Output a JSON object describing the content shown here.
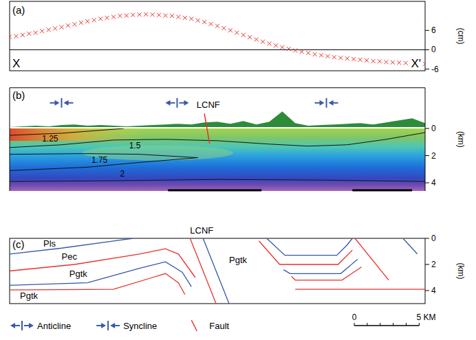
{
  "chart_data": {
    "type": "scatter",
    "panel_label": "(a)",
    "start_label": "X",
    "end_label": "X'",
    "y_label": "(cm)",
    "x": [
      0,
      0.5,
      1,
      1.5,
      2,
      2.5,
      3,
      3.5,
      4,
      4.5,
      5,
      5.5,
      6,
      6.5,
      7,
      7.5,
      8,
      8.5,
      9,
      9.5,
      10,
      10.5,
      11,
      11.5,
      12,
      12.5,
      13,
      13.5,
      14,
      14.5,
      15,
      15.5,
      16,
      16.5,
      17,
      17.5,
      18,
      18.5,
      19,
      19.5,
      20,
      20.5,
      21,
      21.5,
      22,
      22.5,
      23,
      23.5,
      24,
      24.5,
      25,
      25.5,
      26,
      26.5,
      27,
      27.5,
      28,
      28.5,
      29,
      29.5,
      30,
      30.5,
      31,
      31.5,
      32
    ],
    "values": [
      4.0,
      4.2,
      4.6,
      5.0,
      5.3,
      5.8,
      6.2,
      6.6,
      7.0,
      7.5,
      7.9,
      8.4,
      8.8,
      9.2,
      9.6,
      9.9,
      10.2,
      10.5,
      10.6,
      10.8,
      10.9,
      11.0,
      10.9,
      10.8,
      10.6,
      10.5,
      10.2,
      9.9,
      9.6,
      9.1,
      8.6,
      8.0,
      7.4,
      6.7,
      6.0,
      5.3,
      4.6,
      3.9,
      3.2,
      2.5,
      1.9,
      1.3,
      0.8,
      0.3,
      -0.2,
      -0.6,
      -1.0,
      -1.4,
      -1.7,
      -2.0,
      -2.3,
      -2.5,
      -2.7,
      -2.9,
      -3.1,
      -3.3,
      -3.5,
      -3.6,
      -3.8,
      -3.9,
      -4.0,
      -4.1,
      -4.2,
      -4.3,
      -4.4
    ],
    "color": "#e8302a",
    "marker": "x",
    "xlim": [
      0,
      32
    ],
    "ylim": [
      -6.5,
      15
    ],
    "yticks": [
      -6,
      0,
      6
    ],
    "reference_line": 0,
    "tick_labels": "y"
  },
  "section": {
    "panel_label": "(b)",
    "depth_label": "(km)",
    "depth_lim": [
      -3,
      4.6
    ],
    "depth_ticks": [
      0,
      2,
      4
    ],
    "contours": [
      {
        "level": 1.25,
        "x": [
          0,
          4,
          8.8
        ],
        "depth": [
          0.5,
          0.35,
          0
        ],
        "label_at": [
          2.5,
          0.95
        ]
      },
      {
        "level": 1.5,
        "x": [
          0,
          4,
          8,
          12,
          16,
          20,
          23,
          26,
          29,
          32
        ],
        "depth": [
          1.4,
          1.2,
          0.85,
          0.8,
          0.9,
          1.15,
          1.3,
          1.2,
          0.8,
          0.3
        ],
        "label_at": [
          9.2,
          1.45
        ]
      },
      {
        "level": 1.75,
        "x": [
          0,
          6,
          10,
          14.5,
          10,
          6,
          0
        ],
        "depth": [
          3.1,
          2.85,
          2.5,
          2.15,
          1.9,
          1.85,
          1.9
        ],
        "label_at": [
          6.3,
          2.55
        ]
      },
      {
        "level": 2,
        "x": [
          0,
          8,
          16,
          24,
          32
        ],
        "depth": [
          3.9,
          3.85,
          3.75,
          3.8,
          3.9
        ],
        "label_at": [
          8.5,
          3.55
        ]
      }
    ],
    "topography": {
      "x": [
        0,
        1,
        2,
        3,
        4,
        5,
        6,
        7,
        8,
        9,
        10,
        11,
        12,
        13,
        14,
        15,
        16,
        17,
        18,
        19,
        20,
        21,
        22,
        23,
        24,
        25,
        26,
        27,
        28,
        29,
        30,
        31,
        32
      ],
      "elevation": [
        0.1,
        0.15,
        0.2,
        0.15,
        0.25,
        0.3,
        0.2,
        0.25,
        0.2,
        0.15,
        0.2,
        0.25,
        0.3,
        0.35,
        0.3,
        0.45,
        0.5,
        0.35,
        0.55,
        0.3,
        0.5,
        1.25,
        0.4,
        0.2,
        0.25,
        0.3,
        0.35,
        0.4,
        0.3,
        0.45,
        0.6,
        0.75,
        0.4
      ]
    },
    "folds": [
      {
        "type": "syncline",
        "x": 4.0
      },
      {
        "type": "anticline",
        "x": 12.9
      },
      {
        "type": "syncline",
        "x": 24.4
      }
    ],
    "fault": {
      "label": "LCNF",
      "x": [
        15.0,
        15.4
      ],
      "depth": [
        -1.1,
        1.1
      ],
      "label_x": 15.3,
      "label_depth": -1.5
    },
    "bars": [
      [
        12.2,
        19.4
      ],
      [
        26.4,
        31
      ]
    ]
  },
  "geology": {
    "panel_label": "(c)",
    "depth_label": "(km)",
    "depth_lim": [
      0,
      5
    ],
    "depth_ticks": [
      0,
      2,
      4
    ],
    "lines": [
      {
        "color": "#3355aa",
        "x": [
          0,
          4,
          8,
          9.5
        ],
        "depth": [
          1.2,
          0.75,
          0.2,
          0
        ]
      },
      {
        "color": "#e8302a",
        "x": [
          0,
          5,
          10,
          12,
          13,
          14.3
        ],
        "depth": [
          2.5,
          2.0,
          1.2,
          0.8,
          1.2,
          3.0
        ]
      },
      {
        "color": "#3355aa",
        "x": [
          0,
          6,
          10,
          12,
          13.3,
          14
        ],
        "depth": [
          3.6,
          3.4,
          2.3,
          1.8,
          2.6,
          3.7
        ]
      },
      {
        "color": "#e8302a",
        "x": [
          0,
          8,
          11,
          12,
          13,
          13.5
        ],
        "depth": [
          3.95,
          3.9,
          3.0,
          2.7,
          3.4,
          4.3
        ]
      },
      {
        "color": "#e8302a",
        "x": [
          13.9,
          15.9
        ],
        "depth": [
          0,
          5
        ]
      },
      {
        "color": "#3355aa",
        "x": [
          14.9,
          16.9
        ],
        "depth": [
          0,
          5
        ]
      },
      {
        "color": "#3355aa",
        "x": [
          19.8,
          21.2,
          25.2,
          26.0,
          26.4
        ],
        "depth": [
          0,
          1.3,
          1.3,
          0.5,
          0
        ]
      },
      {
        "color": "#e8302a",
        "x": [
          19.2,
          20.8,
          25.3,
          26.4
        ],
        "depth": [
          0.2,
          2.0,
          2.0,
          0.9
        ]
      },
      {
        "color": "#3355aa",
        "x": [
          21.1,
          21.6,
          25.5,
          26.8
        ],
        "depth": [
          2.4,
          2.7,
          2.7,
          1.6
        ]
      },
      {
        "color": "#e8302a",
        "x": [
          21.7,
          22.0,
          25.6,
          27.1
        ],
        "depth": [
          2.9,
          3.2,
          3.2,
          2.2
        ]
      },
      {
        "color": "#e8302a",
        "x": [
          26.6,
          29.2
        ],
        "depth": [
          0,
          3.2
        ]
      },
      {
        "color": "#e8302a",
        "x": [
          22.0,
          32
        ],
        "depth": [
          3.9,
          3.9
        ]
      },
      {
        "color": "#3355aa",
        "x": [
          30.3,
          31.4
        ],
        "depth": [
          0,
          1.2
        ]
      }
    ],
    "units": [
      {
        "text": "Pls",
        "x": 2.6,
        "depth": 0.65
      },
      {
        "text": "Pec",
        "x": 4.0,
        "depth": 1.65
      },
      {
        "text": "Pgtk",
        "x": 4.6,
        "depth": 2.95
      },
      {
        "text": "Pgtk",
        "x": 0.8,
        "depth": 4.65
      },
      {
        "text": "Pgtk",
        "x": 16.9,
        "depth": 1.9
      }
    ],
    "fault_label": {
      "text": "LCNF",
      "x": 14.8,
      "depth": -0.35
    }
  },
  "legend": {
    "items": [
      {
        "symbol": "anticline",
        "text": "Anticline"
      },
      {
        "symbol": "syncline",
        "text": "Syncline"
      },
      {
        "symbol": "fault",
        "text": "Fault"
      }
    ]
  },
  "scale_bar": {
    "ticks": [
      0,
      1,
      2,
      3,
      4,
      5
    ],
    "labels": [
      {
        "value": 0,
        "label": "0"
      },
      {
        "value": 5,
        "label": "5 KM"
      }
    ]
  }
}
